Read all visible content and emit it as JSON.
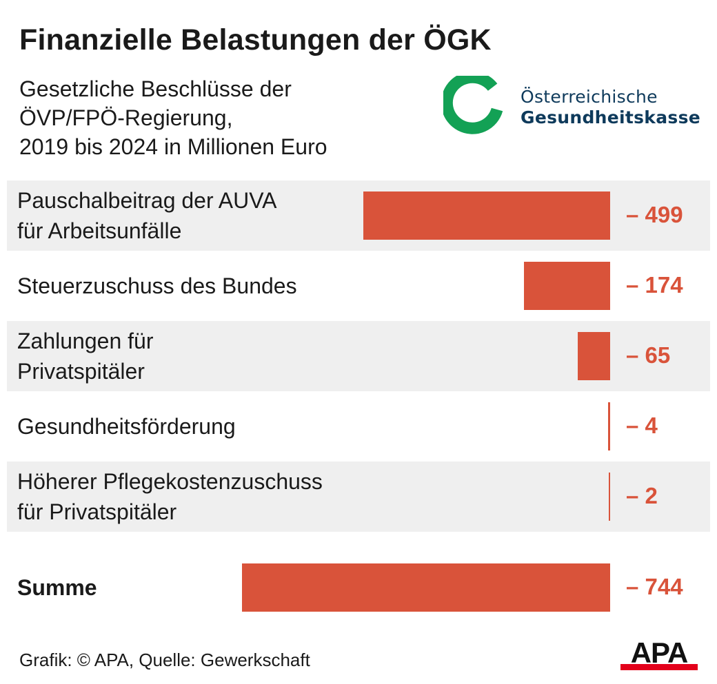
{
  "header": {
    "title": "Finanzielle Belastungen der ÖGK",
    "subtitle_lines": [
      "Gesetzliche Beschlüsse der",
      "ÖVP/FPÖ-Regierung,",
      "2019 bis 2024 in Millionen Euro"
    ]
  },
  "logo": {
    "line1": "Österreichische",
    "line2": "Gesundheitskasse",
    "color_green": "#13a155",
    "color_text": "#0e3a5b"
  },
  "chart_data": {
    "type": "bar",
    "orientation": "horizontal",
    "title": "Finanzielle Belastungen der ÖGK",
    "subtitle": "Gesetzliche Beschlüsse der ÖVP/FPÖ-Regierung, 2019 bis 2024 in Millionen Euro",
    "categories": [
      [
        "Pauschalbeitrag der AUVA",
        "für Arbeitsunfälle"
      ],
      [
        "Steuerzuschuss des Bundes"
      ],
      [
        "Zahlungen für",
        "Privatspitäler"
      ],
      [
        "Gesundheitsförderung"
      ],
      [
        "Höherer Pflegekostenzuschuss",
        "für Privatspitäler"
      ]
    ],
    "values": [
      -499,
      -174,
      -65,
      -4,
      -2
    ],
    "value_labels": [
      "– 499",
      "– 174",
      "– 65",
      "– 4",
      "– 2"
    ],
    "total": {
      "label": "Summe",
      "value": -744,
      "value_label": "– 744"
    },
    "xlim": [
      -744,
      0
    ],
    "colors": {
      "bar": "#d9533a",
      "value_text": "#d9533a",
      "row_shade": "#efefef"
    }
  },
  "footer": {
    "source": "Grafik: © APA, Quelle: Gewerkschaft",
    "agency_logo": "APA"
  }
}
